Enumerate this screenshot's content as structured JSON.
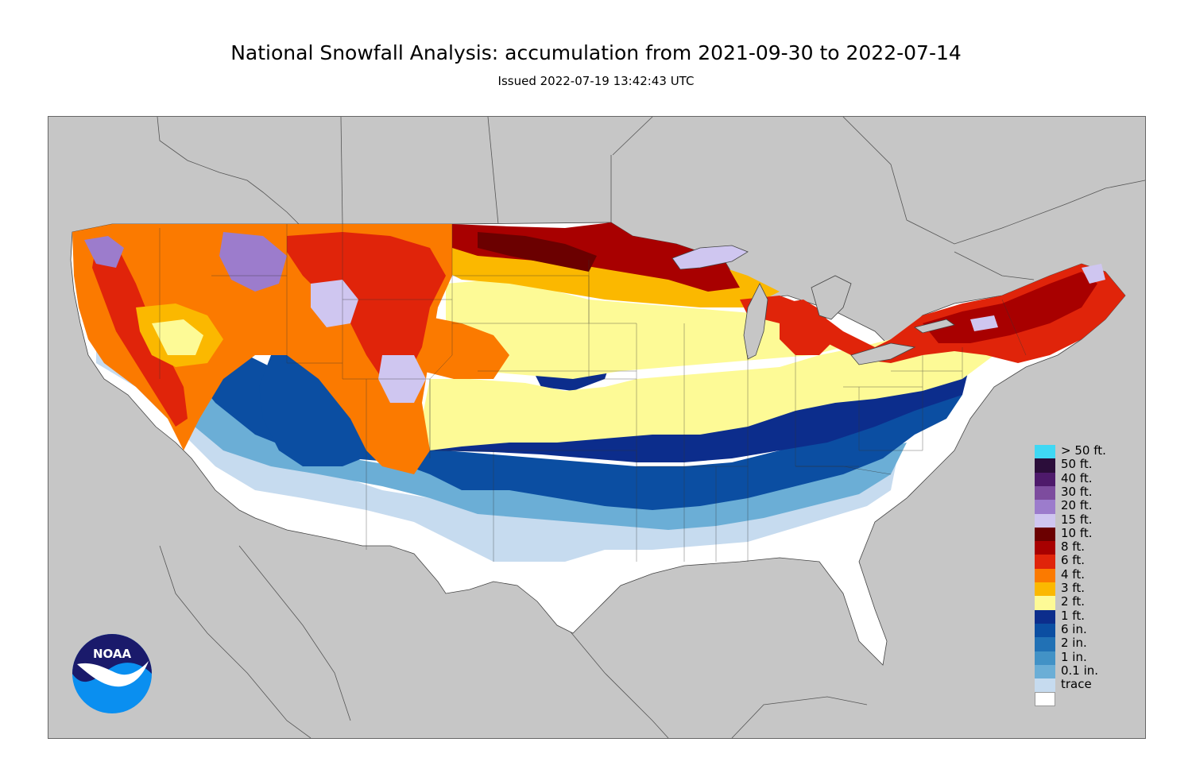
{
  "title": "National Snowfall Analysis: accumulation from 2021-09-30 to 2022-07-14",
  "subtitle": "Issued 2022-07-19 13:42:43 UTC",
  "legend": [
    {
      "label": "> 50 ft.",
      "color": "#3fd8f4"
    },
    {
      "label": "50 ft.",
      "color": "#2b0d3a"
    },
    {
      "label": "40 ft.",
      "color": "#4e1a6b"
    },
    {
      "label": "30 ft.",
      "color": "#7d4c9e"
    },
    {
      "label": "20 ft.",
      "color": "#9c7ccc"
    },
    {
      "label": "15 ft.",
      "color": "#cfc6f0"
    },
    {
      "label": "10 ft.",
      "color": "#6b0000"
    },
    {
      "label": "8 ft.",
      "color": "#a80000"
    },
    {
      "label": "6 ft.",
      "color": "#e0240a"
    },
    {
      "label": "4 ft.",
      "color": "#fb7a00"
    },
    {
      "label": "3 ft.",
      "color": "#fbb800"
    },
    {
      "label": "2 ft.",
      "color": "#fdfa96"
    },
    {
      "label": "1 ft.",
      "color": "#0c2d8c"
    },
    {
      "label": "6 in.",
      "color": "#0b4ea2"
    },
    {
      "label": "2 in.",
      "color": "#2171b5"
    },
    {
      "label": "1 in.",
      "color": "#4292c6"
    },
    {
      "label": "0.1 in.",
      "color": "#6baed6"
    },
    {
      "label": "trace",
      "color": "#c6dbef"
    }
  ],
  "logo": {
    "text": "NOAA",
    "name": "noaa-logo"
  },
  "background_color": "#c6c6c6"
}
